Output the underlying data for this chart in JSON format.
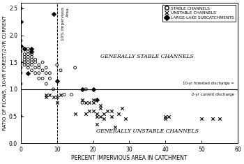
{
  "stable_x": [
    0,
    0,
    0,
    0,
    0,
    0,
    0,
    0,
    1,
    1,
    1,
    1,
    1,
    1,
    2,
    2,
    2,
    2,
    2,
    2,
    2,
    2,
    3,
    3,
    3,
    3,
    3,
    3,
    3,
    4,
    4,
    4,
    4,
    5,
    5,
    5,
    5,
    6,
    6,
    6,
    7,
    7,
    7,
    8,
    8,
    9,
    10,
    11,
    12,
    14,
    15,
    17,
    18
  ],
  "stable_y": [
    2.5,
    1.9,
    1.7,
    1.5,
    1.4,
    1.3,
    1.1,
    0.5,
    1.75,
    1.65,
    1.6,
    1.55,
    1.5,
    1.45,
    1.75,
    1.7,
    1.65,
    1.6,
    1.55,
    1.5,
    1.45,
    1.4,
    1.7,
    1.65,
    1.6,
    1.55,
    1.5,
    1.45,
    1.35,
    1.55,
    1.5,
    1.4,
    1.3,
    1.45,
    1.4,
    1.3,
    1.2,
    1.5,
    1.35,
    1.2,
    1.4,
    1.3,
    1.1,
    1.3,
    1.2,
    1.0,
    1.45,
    1.35,
    0.9,
    0.9,
    1.4,
    0.75,
    1.0
  ],
  "unstable_x": [
    7,
    7,
    8,
    9,
    10,
    10,
    11,
    15,
    17,
    18,
    18,
    19,
    19,
    20,
    20,
    20,
    21,
    21,
    21,
    22,
    22,
    22,
    23,
    23,
    24,
    25,
    25,
    26,
    27,
    28,
    29,
    40,
    40,
    41,
    50,
    53,
    55
  ],
  "unstable_y": [
    0.9,
    0.85,
    0.9,
    0.85,
    0.85,
    0.75,
    0.9,
    0.55,
    0.8,
    0.75,
    0.55,
    0.75,
    0.6,
    0.8,
    0.75,
    0.6,
    0.55,
    0.5,
    0.35,
    0.7,
    0.65,
    0.5,
    0.55,
    0.45,
    0.6,
    0.6,
    0.5,
    0.3,
    0.55,
    0.65,
    0.45,
    0.5,
    0.45,
    0.5,
    0.45,
    0.45,
    0.45
  ],
  "lake_x": [
    0,
    0,
    1,
    2,
    3,
    3,
    9,
    10,
    17,
    20,
    21
  ],
  "lake_y": [
    2.25,
    1.8,
    1.75,
    1.3,
    1.75,
    1.7,
    2.4,
    1.15,
    1.0,
    1.0,
    0.8
  ],
  "xlim": [
    0,
    60
  ],
  "ylim": [
    0.0,
    2.6
  ],
  "xticks": [
    0,
    10,
    20,
    30,
    40,
    50,
    60
  ],
  "yticks": [
    0.0,
    0.5,
    1.0,
    1.5,
    2.0,
    2.5
  ],
  "xlabel": "PERCENT IMPERVIOUS AREA IN CATCHMENT",
  "ylabel": "RATIO OF FLOWS, 10-YR FOREST/2-YR CURRENT",
  "hline_y": 1.0,
  "vline_x": 10,
  "stable_label": "STABLE CHANNELS",
  "unstable_label": "UNSTABLE CHANNELS",
  "lake_label": "LARGE-LAKE SUBCATCHMENTS",
  "text_stable": "GENERALLY STABLE CHANNELS",
  "text_unstable": "GENERALLY UNSTABLE CHANNELS",
  "text_hline1": "10-yr forested discharge =",
  "text_hline2": "2-yr current discharge",
  "text_vline_line1": "10% Impervious",
  "text_vline_line2": "Area",
  "stable_color": "black",
  "unstable_color": "black",
  "lake_color": "black",
  "figwidth": 3.5,
  "figheight": 2.35,
  "dpi": 100
}
